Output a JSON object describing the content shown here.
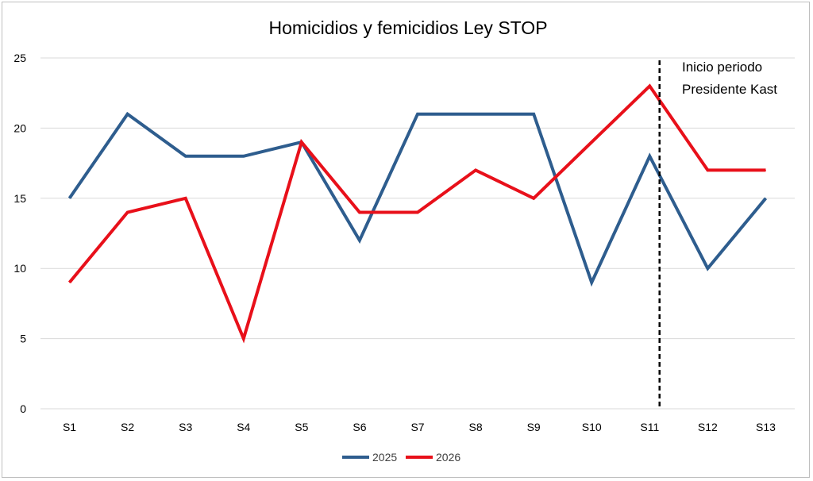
{
  "chart_data": {
    "type": "line",
    "title": "Homicidios y femicidios Ley STOP",
    "xlabel": "",
    "ylabel": "",
    "categories": [
      "S1",
      "S2",
      "S3",
      "S4",
      "S5",
      "S6",
      "S7",
      "S8",
      "S9",
      "S10",
      "S11",
      "S12",
      "S13"
    ],
    "ylim": [
      0,
      25
    ],
    "yticks": [
      0,
      5,
      10,
      15,
      20,
      25
    ],
    "grid": true,
    "legend_position": "bottom",
    "series": [
      {
        "name": "2025",
        "color": "#2e5d8e",
        "values": [
          15,
          21,
          18,
          18,
          19,
          12,
          21,
          21,
          21,
          9,
          18,
          10,
          15
        ]
      },
      {
        "name": "2026",
        "color": "#e8101a",
        "values": [
          9,
          14,
          15,
          5,
          19,
          14,
          14,
          17,
          15,
          19,
          23,
          17,
          17
        ]
      }
    ],
    "annotation": {
      "lines": [
        "Inicio periodo",
        "Presidente Kast"
      ],
      "marker_between": [
        "S11",
        "S12"
      ],
      "marker_fraction": 0.17,
      "line_style": "dashed",
      "line_color": "#000000"
    }
  }
}
